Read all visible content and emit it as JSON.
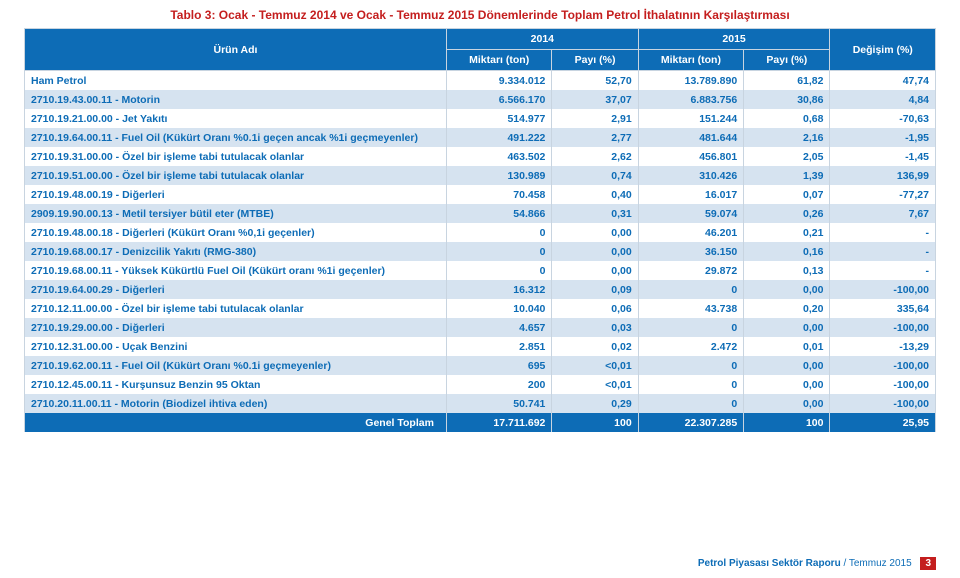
{
  "title": "Tablo 3: Ocak - Temmuz 2014 ve Ocak - Temmuz 2015 Dönemlerinde Toplam Petrol İthalatının Karşılaştırması",
  "header": {
    "name": "Ürün Adı",
    "y2014": "2014",
    "y2015": "2015",
    "qty": "Miktarı (ton)",
    "share": "Payı (%)",
    "change": "Değişim (%)"
  },
  "rows": [
    {
      "name": "Ham Petrol",
      "q14": "9.334.012",
      "p14": "52,70",
      "q15": "13.789.890",
      "p15": "61,82",
      "chg": "47,74"
    },
    {
      "name": "2710.19.43.00.11 - Motorin",
      "q14": "6.566.170",
      "p14": "37,07",
      "q15": "6.883.756",
      "p15": "30,86",
      "chg": "4,84"
    },
    {
      "name": "2710.19.21.00.00 - Jet Yakıtı",
      "q14": "514.977",
      "p14": "2,91",
      "q15": "151.244",
      "p15": "0,68",
      "chg": "-70,63"
    },
    {
      "name": "2710.19.64.00.11 - Fuel Oil (Kükürt Oranı %0.1i geçen ancak %1i geçmeyenler)",
      "q14": "491.222",
      "p14": "2,77",
      "q15": "481.644",
      "p15": "2,16",
      "chg": "-1,95"
    },
    {
      "name": "2710.19.31.00.00 - Özel bir işleme tabi tutulacak olanlar",
      "q14": "463.502",
      "p14": "2,62",
      "q15": "456.801",
      "p15": "2,05",
      "chg": "-1,45"
    },
    {
      "name": "2710.19.51.00.00 - Özel bir işleme tabi tutulacak olanlar",
      "q14": "130.989",
      "p14": "0,74",
      "q15": "310.426",
      "p15": "1,39",
      "chg": "136,99"
    },
    {
      "name": "2710.19.48.00.19 - Diğerleri",
      "q14": "70.458",
      "p14": "0,40",
      "q15": "16.017",
      "p15": "0,07",
      "chg": "-77,27"
    },
    {
      "name": "2909.19.90.00.13 - Metil tersiyer bütil eter (MTBE)",
      "q14": "54.866",
      "p14": "0,31",
      "q15": "59.074",
      "p15": "0,26",
      "chg": "7,67"
    },
    {
      "name": "2710.19.48.00.18 - Diğerleri (Kükürt Oranı %0,1i geçenler)",
      "q14": "0",
      "p14": "0,00",
      "q15": "46.201",
      "p15": "0,21",
      "chg": "-"
    },
    {
      "name": "2710.19.68.00.17 - Denizcilik Yakıtı (RMG-380)",
      "q14": "0",
      "p14": "0,00",
      "q15": "36.150",
      "p15": "0,16",
      "chg": "-"
    },
    {
      "name": "2710.19.68.00.11 - Yüksek Kükürtlü Fuel Oil (Kükürt oranı %1i geçenler)",
      "q14": "0",
      "p14": "0,00",
      "q15": "29.872",
      "p15": "0,13",
      "chg": "-"
    },
    {
      "name": "2710.19.64.00.29 - Diğerleri",
      "q14": "16.312",
      "p14": "0,09",
      "q15": "0",
      "p15": "0,00",
      "chg": "-100,00"
    },
    {
      "name": "2710.12.11.00.00 - Özel bir işleme tabi tutulacak olanlar",
      "q14": "10.040",
      "p14": "0,06",
      "q15": "43.738",
      "p15": "0,20",
      "chg": "335,64"
    },
    {
      "name": "2710.19.29.00.00 - Diğerleri",
      "q14": "4.657",
      "p14": "0,03",
      "q15": "0",
      "p15": "0,00",
      "chg": "-100,00"
    },
    {
      "name": "2710.12.31.00.00 - Uçak Benzini",
      "q14": "2.851",
      "p14": "0,02",
      "q15": "2.472",
      "p15": "0,01",
      "chg": "-13,29"
    },
    {
      "name": "2710.19.62.00.11 - Fuel Oil (Kükürt Oranı %0.1i geçmeyenler)",
      "q14": "695",
      "p14": "<0,01",
      "q15": "0",
      "p15": "0,00",
      "chg": "-100,00"
    },
    {
      "name": "2710.12.45.00.11 - Kurşunsuz Benzin 95 Oktan",
      "q14": "200",
      "p14": "<0,01",
      "q15": "0",
      "p15": "0,00",
      "chg": "-100,00"
    },
    {
      "name": "2710.20.11.00.11 - Motorin (Biodizel ihtiva eden)",
      "q14": "50.741",
      "p14": "0,29",
      "q15": "0",
      "p15": "0,00",
      "chg": "-100,00"
    }
  ],
  "total": {
    "name": "Genel Toplam",
    "q14": "17.711.692",
    "p14": "100",
    "q15": "22.307.285",
    "p15": "100",
    "chg": "25,95"
  },
  "footer": {
    "reportBold": "Petrol Piyasası Sektör Raporu",
    "reportRest": " / Temmuz 2015",
    "page": "3"
  },
  "style": {
    "headerBg": "#0d6cb6",
    "headerText": "#ffffff",
    "altRowBg": "#d6e3f0",
    "cellText": "#0d6cb6",
    "titleColor": "#c41e1e",
    "borderColor": "#c8d4e0"
  }
}
